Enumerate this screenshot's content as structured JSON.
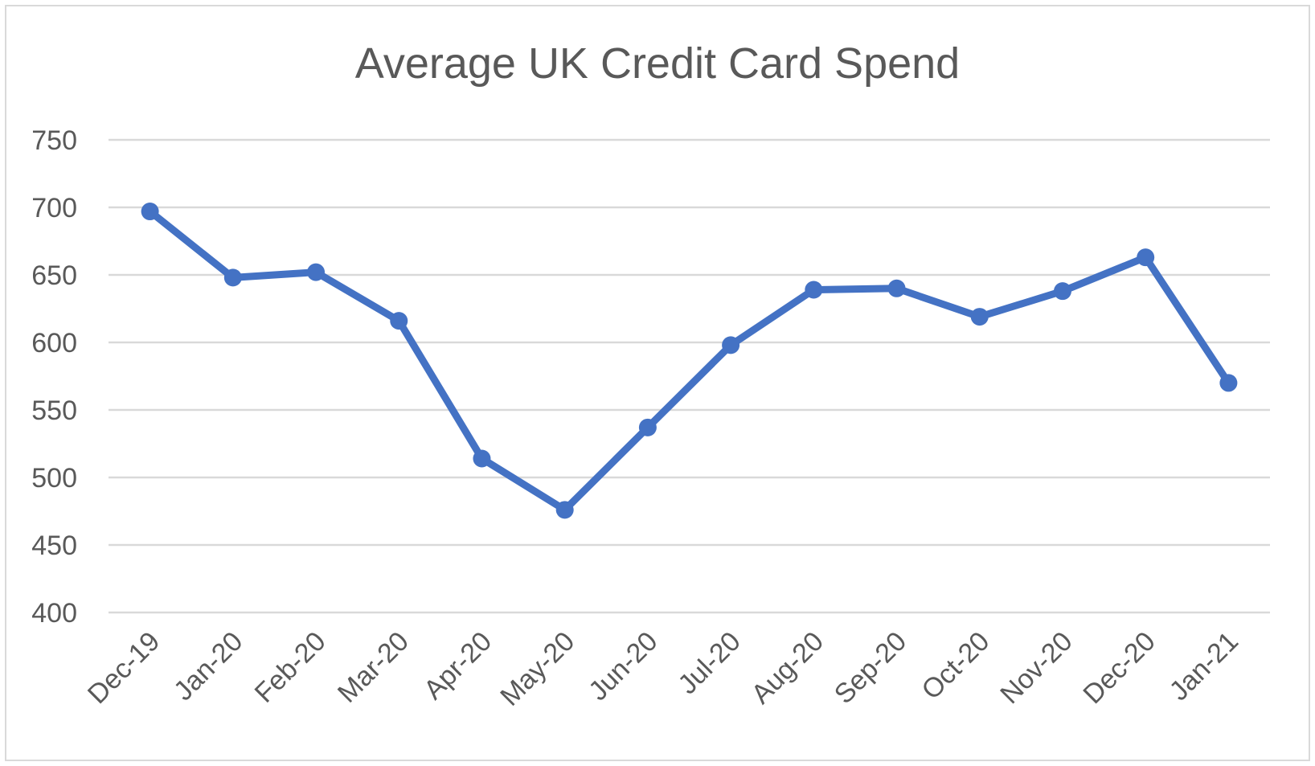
{
  "chart_data": {
    "type": "line",
    "title": "Average UK Credit Card Spend",
    "xlabel": "",
    "ylabel": "",
    "categories": [
      "Dec-19",
      "Jan-20",
      "Feb-20",
      "Mar-20",
      "Apr-20",
      "May-20",
      "Jun-20",
      "Jul-20",
      "Aug-20",
      "Sep-20",
      "Oct-20",
      "Nov-20",
      "Dec-20",
      "Jan-21"
    ],
    "series": [
      {
        "values": [
          697,
          648,
          652,
          616,
          514,
          476,
          537,
          598,
          639,
          640,
          619,
          638,
          663,
          570
        ]
      }
    ],
    "ylim": [
      400,
      750
    ],
    "yticks": [
      400,
      450,
      500,
      550,
      600,
      650,
      700,
      750
    ],
    "grid": true,
    "legend": "none",
    "colors": {
      "series": "#4472c4",
      "grid": "#d9d9d9",
      "text": "#595959",
      "border": "#d9d9d9"
    }
  }
}
